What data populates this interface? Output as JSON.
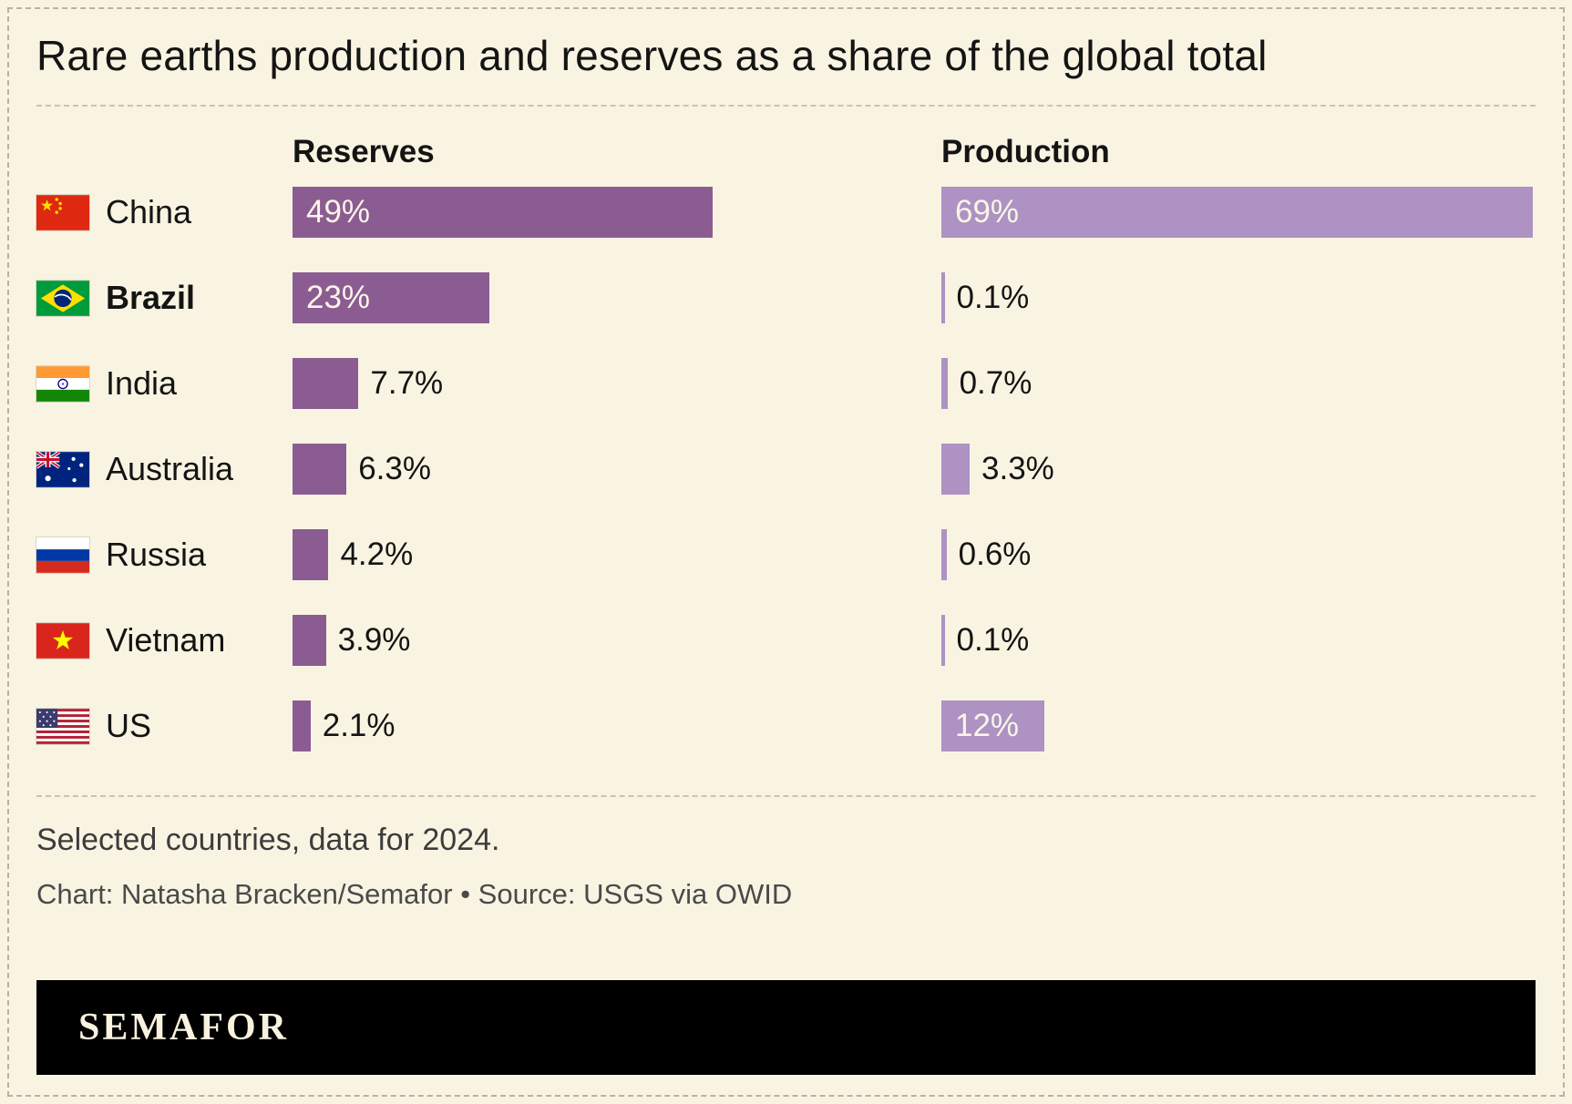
{
  "title": "Rare earths production and reserves as a share of the global total",
  "chart_data": {
    "type": "bar",
    "title": "Rare earths production and reserves as a share of the global total",
    "columns": [
      "Reserves",
      "Production"
    ],
    "unit": "%",
    "highlighted_country": "Brazil",
    "colors": {
      "reserves": "#8b5c92",
      "production": "#ad92c3"
    },
    "rows": [
      {
        "country": "China",
        "reserves": 49,
        "reserves_label": "49%",
        "production": 69,
        "production_label": "69%"
      },
      {
        "country": "Brazil",
        "reserves": 23,
        "reserves_label": "23%",
        "production": 0.1,
        "production_label": "0.1%"
      },
      {
        "country": "India",
        "reserves": 7.7,
        "reserves_label": "7.7%",
        "production": 0.7,
        "production_label": "0.7%"
      },
      {
        "country": "Australia",
        "reserves": 6.3,
        "reserves_label": "6.3%",
        "production": 3.3,
        "production_label": "3.3%"
      },
      {
        "country": "Russia",
        "reserves": 4.2,
        "reserves_label": "4.2%",
        "production": 0.6,
        "production_label": "0.6%"
      },
      {
        "country": "Vietnam",
        "reserves": 3.9,
        "reserves_label": "3.9%",
        "production": 0.1,
        "production_label": "0.1%"
      },
      {
        "country": "US",
        "reserves": 2.1,
        "reserves_label": "2.1%",
        "production": 12,
        "production_label": "12%"
      }
    ],
    "note": "Selected countries, data for 2024.",
    "credit": "Chart: Natasha Bracken/Semafor • Source: USGS via OWID"
  },
  "footer": {
    "brand": "SEMAFOR"
  }
}
